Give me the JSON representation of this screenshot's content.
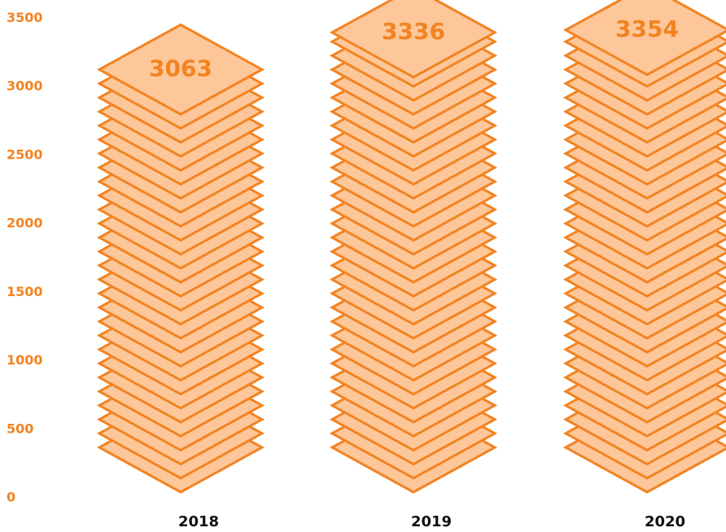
{
  "chart_data": {
    "type": "bar",
    "categories": [
      "2018",
      "2019",
      "2020"
    ],
    "values": [
      3063,
      3336,
      3354
    ],
    "data_labels": [
      "3063",
      "3336",
      "3354"
    ],
    "yticks": [
      "0",
      "500",
      "1000",
      "1500",
      "2000",
      "2500",
      "3000",
      "3500"
    ],
    "ylim": [
      0,
      3500
    ],
    "grid": false,
    "legend": "none",
    "style": "stacked sheets of paper",
    "colors": {
      "fill": "#fdc79a",
      "stroke": "#f28321",
      "axis_text": "#f28321",
      "category_text": "#111111"
    }
  }
}
